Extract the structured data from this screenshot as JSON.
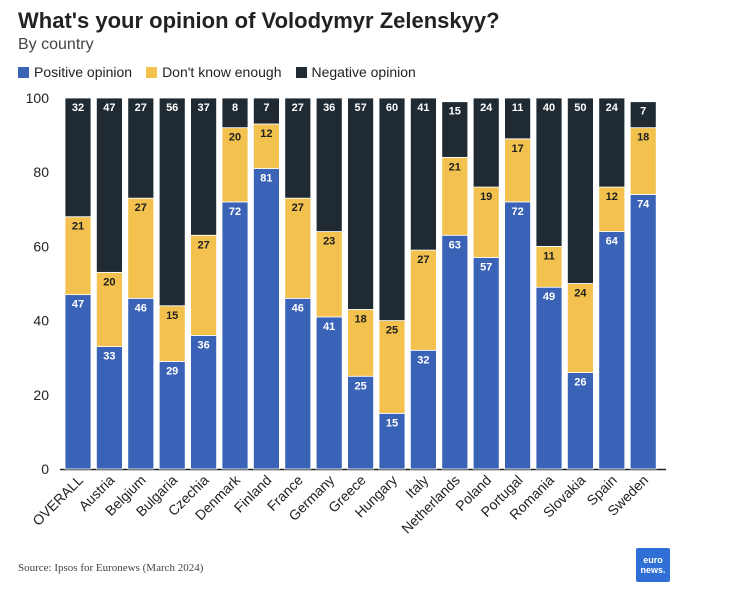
{
  "header": {
    "title": "What's your opinion of Volodymyr Zelenskyy?",
    "subtitle": "By country"
  },
  "legend": [
    {
      "label": "Positive opinion",
      "color": "#3a63b8"
    },
    {
      "label": "Don't know enough",
      "color": "#f2c14e"
    },
    {
      "label": "Negative opinion",
      "color": "#1f2a33"
    }
  ],
  "footer": {
    "source": "Source: Ipsos for Euronews (March 2024)",
    "logo_top": "euro",
    "logo_bottom": "news."
  },
  "chart_data": {
    "type": "bar",
    "stacked": true,
    "ylim": [
      0,
      100
    ],
    "yticks": [
      0,
      20,
      40,
      60,
      80,
      100
    ],
    "grid": false,
    "legend_position": "top-left",
    "categories": [
      "OVERALL",
      "Austria",
      "Belgium",
      "Bulgaria",
      "Czechia",
      "Denmark",
      "Finland",
      "France",
      "Germany",
      "Greece",
      "Hungary",
      "Italy",
      "Netherlands",
      "Poland",
      "Portugal",
      "Romania",
      "Slovakia",
      "Spain",
      "Sweden"
    ],
    "series": [
      {
        "name": "Positive opinion",
        "color": "#3a63b8",
        "label_color": "#ffffff",
        "values": [
          47,
          33,
          46,
          29,
          36,
          72,
          81,
          46,
          41,
          25,
          15,
          32,
          63,
          57,
          72,
          49,
          26,
          64,
          74
        ]
      },
      {
        "name": "Don't know enough",
        "color": "#f2c14e",
        "label_color": "#1f1f1f",
        "values": [
          21,
          20,
          27,
          15,
          27,
          20,
          12,
          27,
          23,
          18,
          25,
          27,
          21,
          19,
          17,
          11,
          24,
          12,
          18
        ]
      },
      {
        "name": "Negative opinion",
        "color": "#1f2a33",
        "label_color": "#ffffff",
        "values": [
          32,
          47,
          27,
          56,
          37,
          8,
          7,
          27,
          36,
          57,
          60,
          41,
          15,
          24,
          11,
          40,
          50,
          24,
          7
        ]
      }
    ]
  }
}
